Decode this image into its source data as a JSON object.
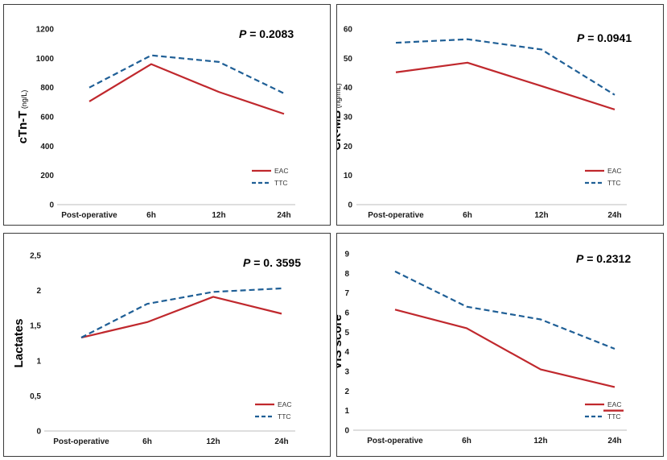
{
  "chart_data": [
    {
      "type": "line",
      "title": "",
      "p_label": "P",
      "p_value": " = 0.2083",
      "ylabel": "cTn-T",
      "yunit": " (ng/L)",
      "categories": [
        "Post-operative",
        "6h",
        "12h",
        "24h"
      ],
      "ylim": [
        0,
        1200
      ],
      "yticks": [
        "0",
        "200",
        "400",
        "600",
        "800",
        "1000",
        "1200"
      ],
      "series": [
        {
          "name": "EAC",
          "values": [
            705,
            960,
            770,
            620
          ],
          "color": "#c0282d",
          "dash": "solid"
        },
        {
          "name": "TTC",
          "values": [
            800,
            1020,
            975,
            760
          ],
          "color": "#1f5f96",
          "dash": "dashed"
        }
      ]
    },
    {
      "type": "line",
      "title": "",
      "p_label": "P",
      "p_value": " = 0.0941",
      "ylabel": "CK-MB",
      "yunit": " (ng/mL)",
      "categories": [
        "Post-operative",
        "6h",
        "12h",
        "24h"
      ],
      "ylim": [
        0,
        60
      ],
      "yticks": [
        "0",
        "10",
        "20",
        "30",
        "40",
        "50",
        "60"
      ],
      "series": [
        {
          "name": "EAC",
          "values": [
            45.2,
            48.5,
            40.5,
            32.5
          ],
          "color": "#c0282d",
          "dash": "solid"
        },
        {
          "name": "TTC",
          "values": [
            55.3,
            56.5,
            53,
            37.5
          ],
          "color": "#1f5f96",
          "dash": "dashed"
        }
      ]
    },
    {
      "type": "line",
      "title": "",
      "p_label": "P",
      "p_value": " = 0. 3595",
      "ylabel": "Lactates",
      "yunit": "",
      "categories": [
        "Post-operative",
        "6h",
        "12h",
        "24h"
      ],
      "ylim": [
        0,
        2.5
      ],
      "yticks": [
        "0",
        "0,5",
        "1",
        "1,5",
        "2",
        "2,5"
      ],
      "series": [
        {
          "name": "EAC",
          "values": [
            1.33,
            1.55,
            1.91,
            1.67
          ],
          "color": "#c0282d",
          "dash": "solid"
        },
        {
          "name": "TTC",
          "values": [
            1.33,
            1.81,
            1.98,
            2.03
          ],
          "color": "#1f5f96",
          "dash": "dashed"
        }
      ]
    },
    {
      "type": "line",
      "title": "",
      "p_label": "P",
      "p_value": " = 0.2312",
      "ylabel": "VIS score",
      "yunit": "",
      "categories": [
        "Post-operative",
        "6h",
        "12h",
        "24h"
      ],
      "ylim": [
        0,
        9
      ],
      "yticks": [
        "0",
        "1",
        "2",
        "3",
        "4",
        "5",
        "6",
        "7",
        "8",
        "9"
      ],
      "series": [
        {
          "name": "EAC",
          "values": [
            6.15,
            5.2,
            3.1,
            2.2
          ],
          "color": "#c0282d",
          "dash": "solid"
        },
        {
          "name": "TTC",
          "values": [
            8.1,
            6.3,
            5.65,
            4.15
          ],
          "color": "#1f5f96",
          "dash": "dashed"
        }
      ]
    }
  ]
}
